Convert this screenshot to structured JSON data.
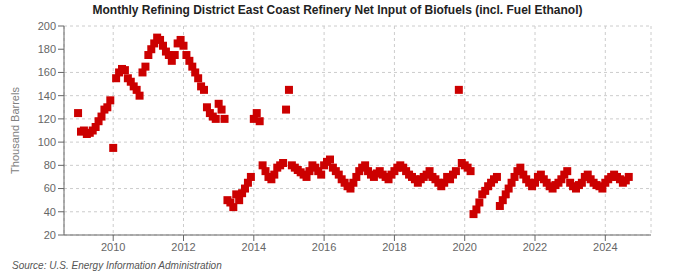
{
  "chart_data": {
    "type": "scatter",
    "title": "Monthly Refining District East Coast Refinery Net Input of Biofuels (incl. Fuel Ethanol)",
    "ylabel": "Thousand Barrels",
    "source": "Source: U.S. Energy Information Administration",
    "color": "#cc0000",
    "marker": "square",
    "grid": true,
    "xlim": [
      2008.6,
      2025.3
    ],
    "xticks": [
      2010,
      2012,
      2014,
      2016,
      2018,
      2020,
      2022,
      2024
    ],
    "ylim": [
      20,
      200
    ],
    "yticks": [
      20,
      40,
      60,
      80,
      100,
      120,
      140,
      160,
      180,
      200
    ],
    "x": [
      2009.0,
      2009.083,
      2009.167,
      2009.25,
      2009.333,
      2009.417,
      2009.5,
      2009.583,
      2009.667,
      2009.75,
      2009.833,
      2009.917,
      2010.0,
      2010.083,
      2010.167,
      2010.25,
      2010.333,
      2010.417,
      2010.5,
      2010.583,
      2010.667,
      2010.75,
      2010.833,
      2010.917,
      2011.0,
      2011.083,
      2011.167,
      2011.25,
      2011.333,
      2011.417,
      2011.5,
      2011.583,
      2011.667,
      2011.75,
      2011.833,
      2011.917,
      2012.0,
      2012.083,
      2012.167,
      2012.25,
      2012.333,
      2012.417,
      2012.5,
      2012.583,
      2012.667,
      2012.75,
      2012.833,
      2012.917,
      2013.0,
      2013.083,
      2013.167,
      2013.25,
      2013.333,
      2013.417,
      2013.5,
      2013.583,
      2013.667,
      2013.75,
      2013.833,
      2013.917,
      2014.0,
      2014.083,
      2014.167,
      2014.25,
      2014.333,
      2014.417,
      2014.5,
      2014.583,
      2014.667,
      2014.75,
      2014.833,
      2014.917,
      2015.0,
      2015.083,
      2015.167,
      2015.25,
      2015.333,
      2015.417,
      2015.5,
      2015.583,
      2015.667,
      2015.75,
      2015.833,
      2015.917,
      2016.0,
      2016.083,
      2016.167,
      2016.25,
      2016.333,
      2016.417,
      2016.5,
      2016.583,
      2016.667,
      2016.75,
      2016.833,
      2016.917,
      2017.0,
      2017.083,
      2017.167,
      2017.25,
      2017.333,
      2017.417,
      2017.5,
      2017.583,
      2017.667,
      2017.75,
      2017.833,
      2017.917,
      2018.0,
      2018.083,
      2018.167,
      2018.25,
      2018.333,
      2018.417,
      2018.5,
      2018.583,
      2018.667,
      2018.75,
      2018.833,
      2018.917,
      2019.0,
      2019.083,
      2019.167,
      2019.25,
      2019.333,
      2019.417,
      2019.5,
      2019.583,
      2019.667,
      2019.75,
      2019.833,
      2019.917,
      2020.0,
      2020.083,
      2020.167,
      2020.25,
      2020.333,
      2020.417,
      2020.5,
      2020.583,
      2020.667,
      2020.75,
      2020.833,
      2020.917,
      2021.0,
      2021.083,
      2021.167,
      2021.25,
      2021.333,
      2021.417,
      2021.5,
      2021.583,
      2021.667,
      2021.75,
      2021.833,
      2021.917,
      2022.0,
      2022.083,
      2022.167,
      2022.25,
      2022.333,
      2022.417,
      2022.5,
      2022.583,
      2022.667,
      2022.75,
      2022.833,
      2022.917,
      2023.0,
      2023.083,
      2023.167,
      2023.25,
      2023.333,
      2023.417,
      2023.5,
      2023.583,
      2023.667,
      2023.75,
      2023.833,
      2023.917,
      2024.0,
      2024.083,
      2024.167,
      2024.25,
      2024.333,
      2024.417,
      2024.5,
      2024.583,
      2024.667
    ],
    "values": [
      125,
      109,
      110,
      107,
      108,
      110,
      113,
      118,
      122,
      128,
      130,
      136,
      95,
      155,
      160,
      163,
      162,
      155,
      152,
      148,
      145,
      140,
      160,
      165,
      175,
      180,
      185,
      190,
      188,
      183,
      178,
      175,
      170,
      175,
      185,
      188,
      183,
      175,
      170,
      165,
      160,
      155,
      148,
      145,
      130,
      125,
      122,
      120,
      133,
      128,
      120,
      50,
      48,
      44,
      55,
      50,
      56,
      60,
      65,
      70,
      120,
      125,
      118,
      80,
      75,
      70,
      68,
      72,
      78,
      80,
      82,
      128,
      145,
      80,
      78,
      76,
      74,
      72,
      70,
      75,
      80,
      78,
      75,
      72,
      80,
      83,
      85,
      78,
      75,
      72,
      68,
      65,
      62,
      60,
      65,
      70,
      75,
      78,
      80,
      75,
      72,
      70,
      73,
      75,
      72,
      70,
      68,
      72,
      75,
      78,
      80,
      78,
      75,
      72,
      70,
      68,
      65,
      68,
      70,
      72,
      75,
      70,
      68,
      65,
      62,
      65,
      70,
      68,
      72,
      75,
      145,
      82,
      80,
      78,
      75,
      38,
      42,
      48,
      55,
      58,
      62,
      65,
      68,
      70,
      45,
      50,
      55,
      60,
      65,
      70,
      75,
      78,
      72,
      68,
      65,
      62,
      65,
      70,
      72,
      68,
      65,
      62,
      60,
      63,
      65,
      68,
      72,
      75,
      65,
      62,
      60,
      63,
      65,
      70,
      72,
      68,
      65,
      63,
      62,
      60,
      65,
      68,
      70,
      72,
      70,
      68,
      65,
      67,
      70
    ]
  }
}
